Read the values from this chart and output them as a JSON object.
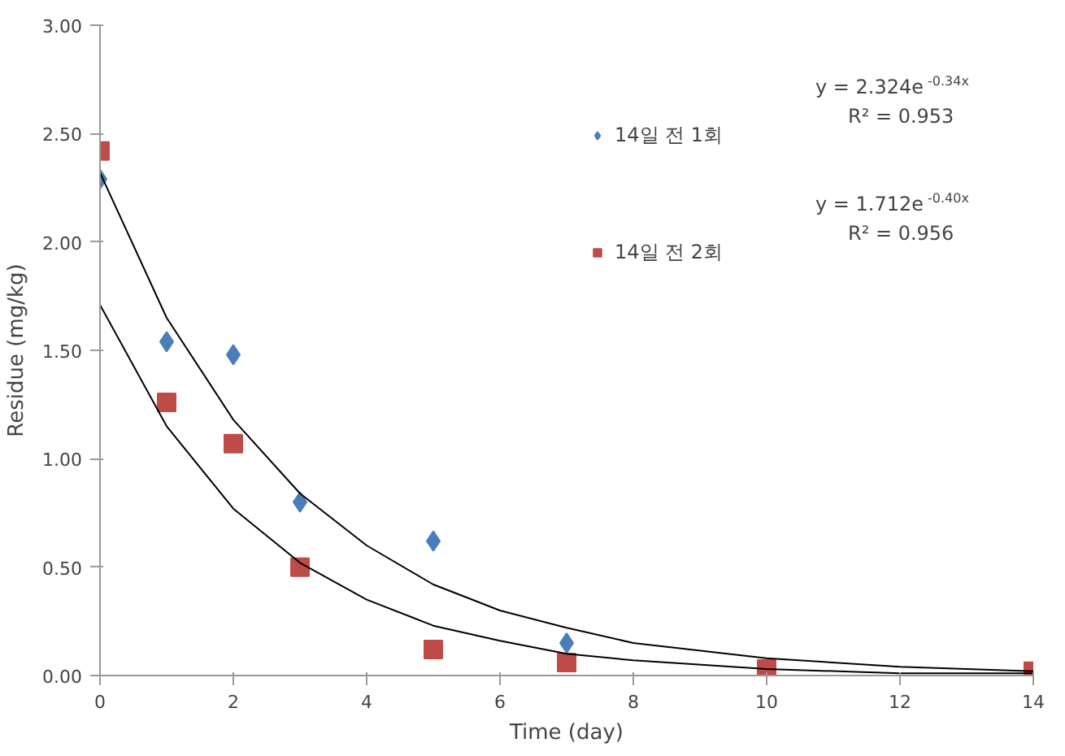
{
  "chart_data": {
    "type": "scatter",
    "xlabel": "Time (day)",
    "ylabel": "Residue (mg/kg)",
    "xlim": [
      0,
      14
    ],
    "ylim": [
      0,
      3
    ],
    "xticks": [
      0,
      2,
      4,
      6,
      8,
      10,
      12,
      14
    ],
    "yticks": [
      {
        "value": 0,
        "label": "0.00"
      },
      {
        "value": 0.5,
        "label": "0.50"
      },
      {
        "value": 1,
        "label": "1.00"
      },
      {
        "value": 1.5,
        "label": "1.50"
      },
      {
        "value": 2,
        "label": "2.00"
      },
      {
        "value": 2.5,
        "label": "2.50"
      },
      {
        "value": 3,
        "label": "3.00"
      }
    ],
    "grid": false,
    "legend": "top right",
    "series": [
      {
        "name": "14일 전 1회",
        "color": "#4a7ebb",
        "marker": "diamond",
        "x": [
          0,
          1,
          2,
          3,
          5,
          7
        ],
        "values": [
          2.29,
          1.54,
          1.48,
          0.8,
          0.62,
          0.15
        ]
      },
      {
        "name": "14일 전 2회",
        "color": "#be4b48",
        "marker": "square",
        "x": [
          0,
          1,
          2,
          3,
          5,
          7,
          10,
          14
        ],
        "values": [
          2.42,
          1.26,
          1.07,
          0.5,
          0.12,
          0.06,
          0.03,
          0.02
        ]
      },
      {
        "type": "line",
        "color": "#000000",
        "x": [
          0,
          1,
          2,
          3,
          4,
          5,
          6,
          7,
          8,
          10,
          12,
          14
        ],
        "values": [
          2.32,
          1.65,
          1.18,
          0.84,
          0.6,
          0.42,
          0.3,
          0.22,
          0.15,
          0.08,
          0.04,
          0.02
        ]
      },
      {
        "type": "line",
        "color": "#000000",
        "x": [
          0,
          1,
          2,
          3,
          4,
          5,
          6,
          7,
          8,
          10,
          12,
          14
        ],
        "values": [
          1.71,
          1.15,
          0.77,
          0.52,
          0.35,
          0.23,
          0.16,
          0.1,
          0.07,
          0.03,
          0.01,
          0.01
        ]
      }
    ],
    "annotations": [
      "y = 2.324e$^{-0.34x}$",
      "R² = 0.953",
      "y = 1.712e$^{-0.40x}$",
      "R² = 0.956"
    ]
  }
}
